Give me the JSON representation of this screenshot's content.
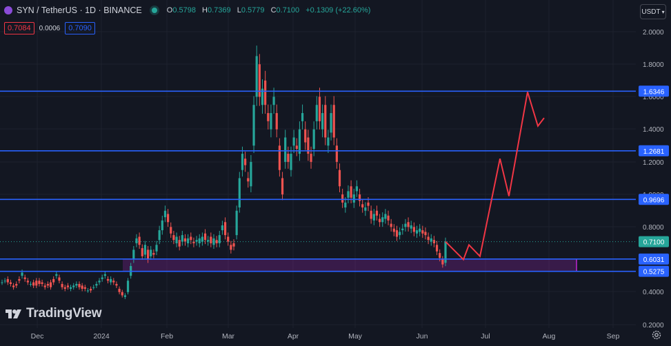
{
  "header": {
    "symbol": "SYN / TetherUS · 1D · BINANCE",
    "open_label": "O",
    "open": "0.5798",
    "high_label": "H",
    "high": "0.7369",
    "low_label": "L",
    "low": "0.5779",
    "close_label": "C",
    "close": "0.7100",
    "change": "+0.1309 (+22.60%)"
  },
  "trade": {
    "sell": "0.7084",
    "spread": "0.0006",
    "buy": "0.7090"
  },
  "currency_button": "USDT",
  "branding": {
    "name": "TradingView"
  },
  "colors": {
    "background": "#131722",
    "up": "#26a69a",
    "down": "#ef5350",
    "level": "#2962ff",
    "projection": "#f23645",
    "zone": "#9c27b0"
  },
  "chart_data": {
    "type": "candlestick",
    "timeframe": "1D",
    "x_tick_labels": [
      "Dec",
      "2024",
      "Feb",
      "Mar",
      "Apr",
      "May",
      "Jun",
      "Jul",
      "Aug",
      "Sep"
    ],
    "y_tick_labels": [
      "2.0000",
      "1.8000",
      "1.6000",
      "1.4000",
      "1.2000",
      "1.0000",
      "0.8000",
      "0.6000",
      "0.4000",
      "0.2000"
    ],
    "ylim": [
      0.2,
      2.0
    ],
    "price_series": [
      [
        0.46,
        0.46
      ],
      [
        0.47,
        0.47
      ],
      [
        0.48,
        0.46
      ],
      [
        0.46,
        0.45
      ],
      [
        0.44,
        0.43
      ],
      [
        0.45,
        0.44
      ],
      [
        0.48,
        0.47
      ],
      [
        0.5,
        0.52
      ],
      [
        0.49,
        0.48
      ],
      [
        0.47,
        0.46
      ],
      [
        0.45,
        0.45
      ],
      [
        0.46,
        0.44
      ],
      [
        0.47,
        0.44
      ],
      [
        0.47,
        0.45
      ],
      [
        0.46,
        0.45
      ],
      [
        0.44,
        0.43
      ],
      [
        0.45,
        0.44
      ],
      [
        0.46,
        0.43
      ],
      [
        0.48,
        0.46
      ],
      [
        0.5,
        0.51
      ],
      [
        0.49,
        0.47
      ],
      [
        0.45,
        0.43
      ],
      [
        0.43,
        0.42
      ],
      [
        0.44,
        0.43
      ],
      [
        0.42,
        0.43
      ],
      [
        0.43,
        0.44
      ],
      [
        0.44,
        0.45
      ],
      [
        0.45,
        0.43
      ],
      [
        0.44,
        0.42
      ],
      [
        0.43,
        0.42
      ],
      [
        0.41,
        0.41
      ],
      [
        0.42,
        0.41
      ],
      [
        0.43,
        0.43
      ],
      [
        0.44,
        0.45
      ],
      [
        0.46,
        0.47
      ],
      [
        0.48,
        0.49
      ],
      [
        0.5,
        0.51
      ],
      [
        0.48,
        0.47
      ],
      [
        0.46,
        0.48
      ],
      [
        0.47,
        0.46
      ],
      [
        0.45,
        0.44
      ],
      [
        0.42,
        0.4
      ],
      [
        0.4,
        0.38
      ],
      [
        0.37,
        0.38
      ],
      [
        0.4,
        0.47
      ],
      [
        0.5,
        0.56
      ],
      [
        0.6,
        0.66
      ],
      [
        0.7,
        0.73
      ],
      [
        0.74,
        0.69
      ],
      [
        0.67,
        0.62
      ],
      [
        0.63,
        0.69
      ],
      [
        0.66,
        0.6
      ],
      [
        0.62,
        0.66
      ],
      [
        0.64,
        0.63
      ],
      [
        0.65,
        0.69
      ],
      [
        0.72,
        0.78
      ],
      [
        0.78,
        0.84
      ],
      [
        0.86,
        0.9
      ],
      [
        0.88,
        0.83
      ],
      [
        0.8,
        0.76
      ],
      [
        0.75,
        0.72
      ],
      [
        0.7,
        0.74
      ],
      [
        0.72,
        0.68
      ],
      [
        0.71,
        0.75
      ],
      [
        0.73,
        0.71
      ],
      [
        0.7,
        0.73
      ],
      [
        0.74,
        0.72
      ],
      [
        0.71,
        0.7
      ],
      [
        0.71,
        0.72
      ],
      [
        0.7,
        0.73
      ],
      [
        0.71,
        0.74
      ],
      [
        0.76,
        0.72
      ],
      [
        0.71,
        0.72
      ],
      [
        0.74,
        0.7
      ],
      [
        0.69,
        0.73
      ],
      [
        0.72,
        0.7
      ],
      [
        0.7,
        0.75
      ],
      [
        0.78,
        0.81
      ],
      [
        0.83,
        0.75
      ],
      [
        0.74,
        0.71
      ],
      [
        0.69,
        0.66
      ],
      [
        0.7,
        0.68
      ],
      [
        0.75,
        0.9
      ],
      [
        0.92,
        1.1
      ],
      [
        1.15,
        1.25
      ],
      [
        1.22,
        1.18
      ],
      [
        1.1,
        1.08
      ],
      [
        1.05,
        1.2
      ],
      [
        1.3,
        1.55
      ],
      [
        1.6,
        1.85
      ],
      [
        1.8,
        1.6
      ],
      [
        1.55,
        1.65
      ],
      [
        1.7,
        1.55
      ],
      [
        1.5,
        1.45
      ],
      [
        1.4,
        1.5
      ],
      [
        1.55,
        1.6
      ],
      [
        1.5,
        1.4
      ],
      [
        1.3,
        1.15
      ],
      [
        1.1,
        1.0
      ],
      [
        1.2,
        1.35
      ],
      [
        1.25,
        1.2
      ],
      [
        1.15,
        1.25
      ],
      [
        1.3,
        1.35
      ],
      [
        1.3,
        1.28
      ],
      [
        1.25,
        1.4
      ],
      [
        1.45,
        1.5
      ],
      [
        1.4,
        1.32
      ],
      [
        1.35,
        1.25
      ],
      [
        1.25,
        1.2
      ],
      [
        1.28,
        1.4
      ],
      [
        1.45,
        1.55
      ],
      [
        1.6,
        1.45
      ],
      [
        1.4,
        1.5
      ],
      [
        1.55,
        1.35
      ],
      [
        1.3,
        1.35
      ],
      [
        1.38,
        1.5
      ],
      [
        1.55,
        1.35
      ],
      [
        1.3,
        1.2
      ],
      [
        1.15,
        1.05
      ],
      [
        1.0,
        0.95
      ],
      [
        0.92,
        0.95
      ],
      [
        0.98,
        1.02
      ],
      [
        1.05,
        0.98
      ],
      [
        0.95,
        1.0
      ],
      [
        1.02,
        1.05
      ],
      [
        1.0,
        0.96
      ],
      [
        0.94,
        0.92
      ],
      [
        0.9,
        0.92
      ],
      [
        0.95,
        0.93
      ],
      [
        0.9,
        0.85
      ],
      [
        0.84,
        0.88
      ],
      [
        0.9,
        0.87
      ],
      [
        0.85,
        0.83
      ],
      [
        0.83,
        0.86
      ],
      [
        0.85,
        0.88
      ],
      [
        0.87,
        0.84
      ],
      [
        0.82,
        0.8
      ],
      [
        0.79,
        0.77
      ],
      [
        0.78,
        0.74
      ],
      [
        0.75,
        0.77
      ],
      [
        0.78,
        0.79
      ],
      [
        0.8,
        0.82
      ],
      [
        0.83,
        0.8
      ],
      [
        0.79,
        0.81
      ],
      [
        0.8,
        0.77
      ],
      [
        0.76,
        0.78
      ],
      [
        0.77,
        0.79
      ],
      [
        0.78,
        0.76
      ],
      [
        0.77,
        0.75
      ],
      [
        0.74,
        0.72
      ],
      [
        0.71,
        0.73
      ],
      [
        0.72,
        0.7
      ],
      [
        0.69,
        0.65
      ],
      [
        0.64,
        0.61
      ],
      [
        0.6,
        0.57
      ],
      [
        0.58,
        0.71
      ]
    ],
    "horizontal_levels": [
      {
        "label": "1.6346",
        "value": 1.6346
      },
      {
        "label": "1.2681",
        "value": 1.2681
      },
      {
        "label": "0.9696",
        "value": 0.9696
      },
      {
        "label": "0.6031",
        "value": 0.6031
      },
      {
        "label": "0.5275",
        "value": 0.5275
      }
    ],
    "last_price": {
      "label": "0.7100",
      "value": 0.71
    },
    "zone": {
      "low": 0.5275,
      "high": 0.6031
    },
    "projection_path": [
      0.71,
      0.6,
      0.69,
      0.62,
      1.22,
      0.99,
      1.63,
      1.42,
      1.47
    ]
  }
}
